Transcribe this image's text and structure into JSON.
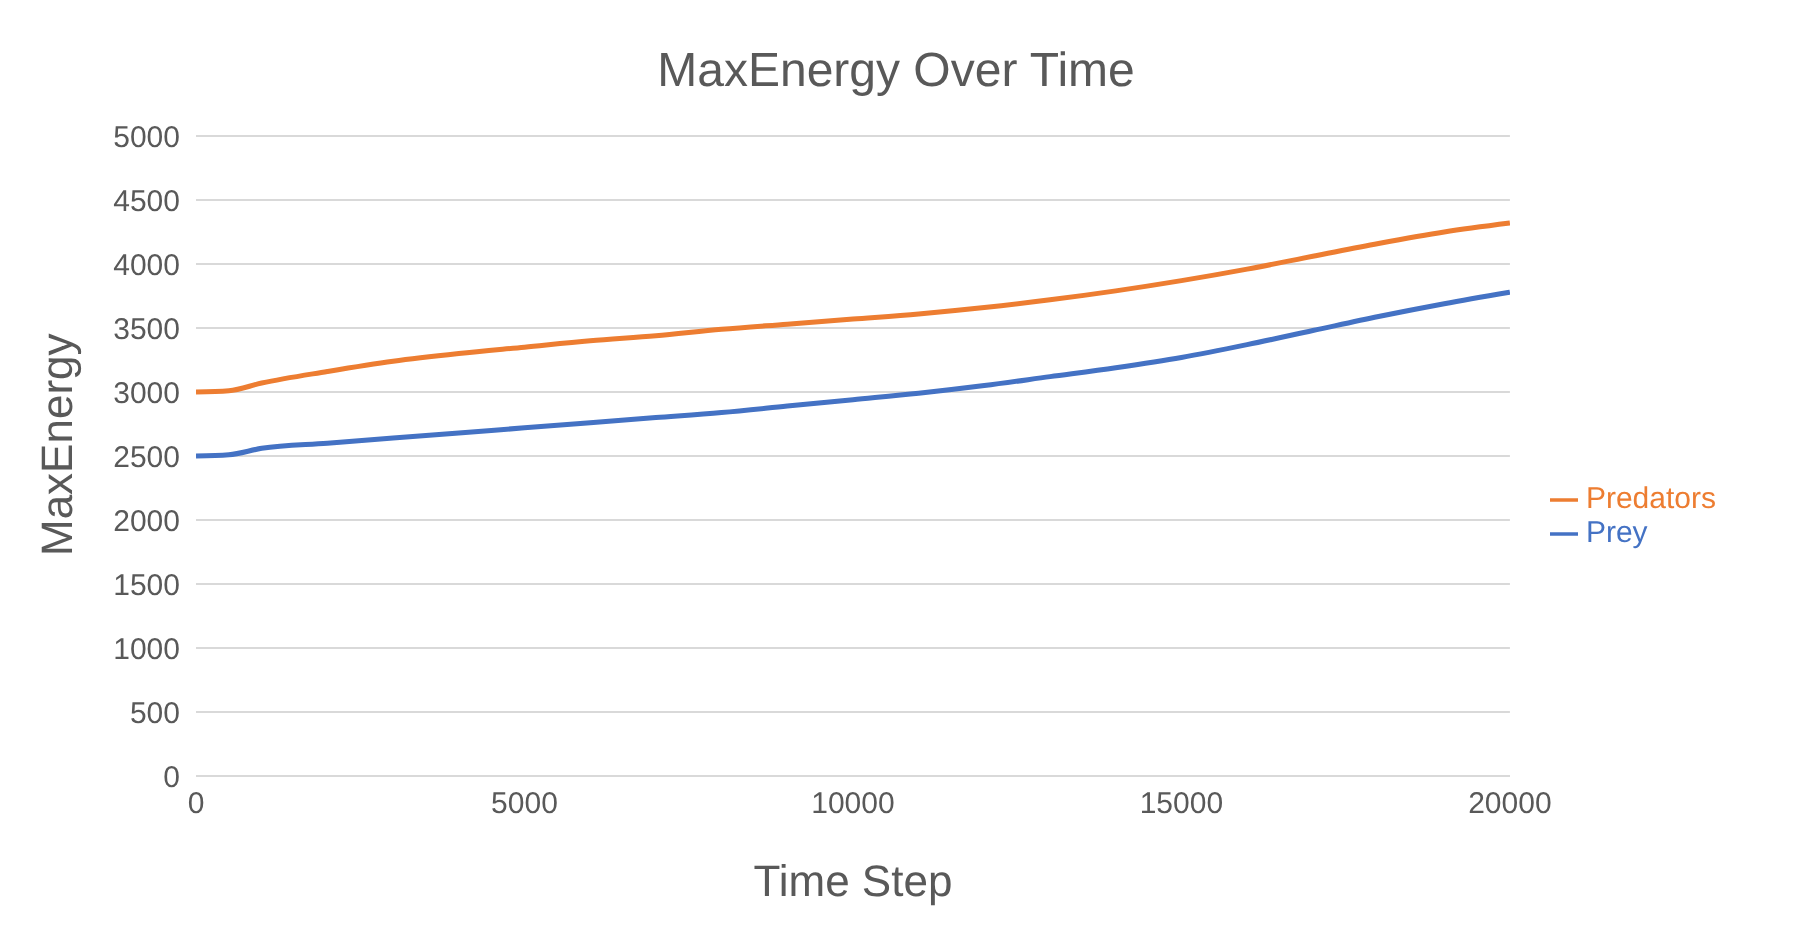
{
  "chart_data": {
    "type": "line",
    "title": "MaxEnergy Over Time",
    "xlabel": "Time Step",
    "ylabel": "MaxEnergy",
    "x": [
      0,
      500,
      1000,
      2000,
      3000,
      4000,
      5000,
      6000,
      7000,
      8000,
      9000,
      10000,
      11000,
      12000,
      13000,
      14000,
      15000,
      16000,
      17000,
      18000,
      19000,
      20000
    ],
    "series": [
      {
        "name": "Prey",
        "color": "#4472c4",
        "values": [
          2500,
          2510,
          2560,
          2600,
          2640,
          2680,
          2720,
          2760,
          2800,
          2840,
          2890,
          2940,
          2990,
          3050,
          3120,
          3190,
          3270,
          3370,
          3480,
          3590,
          3690,
          3780
        ]
      },
      {
        "name": "Predators",
        "color": "#ed7d31",
        "values": [
          3000,
          3010,
          3070,
          3160,
          3240,
          3300,
          3350,
          3400,
          3440,
          3490,
          3530,
          3570,
          3610,
          3660,
          3720,
          3790,
          3870,
          3960,
          4060,
          4160,
          4250,
          4320
        ]
      }
    ],
    "xlim": [
      0,
      20000
    ],
    "xticks": [
      0,
      5000,
      10000,
      15000,
      20000
    ],
    "ylim": [
      0,
      5000
    ],
    "yticks": [
      0,
      500,
      1000,
      1500,
      2000,
      2500,
      3000,
      3500,
      4000,
      4500,
      5000
    ],
    "grid": "y",
    "legend": "right",
    "marker": "none",
    "line_style": "solid"
  }
}
